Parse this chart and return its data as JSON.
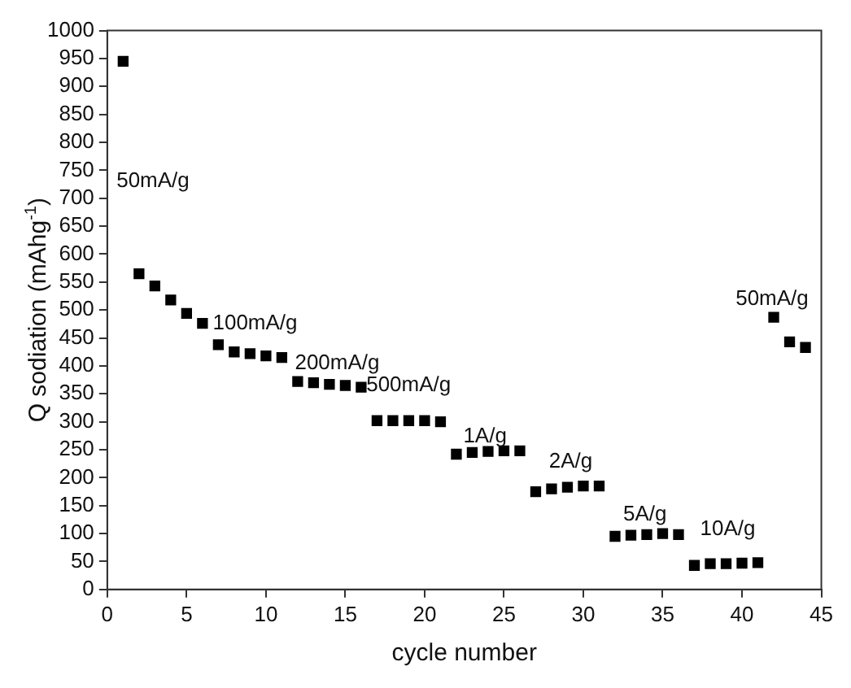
{
  "chart_data": {
    "type": "scatter",
    "xlabel": "cycle number",
    "ylabel": "Q sodiation (mAhg$^{-1}$)",
    "x": [
      1,
      2,
      3,
      4,
      5,
      6,
      7,
      8,
      9,
      10,
      11,
      12,
      13,
      14,
      15,
      16,
      17,
      18,
      19,
      20,
      21,
      22,
      23,
      24,
      25,
      26,
      27,
      28,
      29,
      30,
      31,
      32,
      33,
      34,
      35,
      36,
      37,
      38,
      39,
      40,
      41,
      42,
      43,
      44
    ],
    "series": [
      {
        "color": "#000000",
        "values": [
          945,
          565,
          543,
          518,
          494,
          476,
          438,
          425,
          422,
          418,
          415,
          372,
          370,
          367,
          365,
          362,
          302,
          302,
          302,
          302,
          300,
          242,
          245,
          247,
          248,
          248,
          175,
          180,
          183,
          185,
          185,
          95,
          97,
          98,
          100,
          98,
          43,
          46,
          46,
          47,
          48,
          487,
          443,
          433
        ]
      }
    ],
    "xlim": [
      0,
      45
    ],
    "xticks": [
      0,
      5,
      10,
      15,
      20,
      25,
      30,
      35,
      40,
      45
    ],
    "ylim": [
      0,
      1000
    ],
    "yticks": [
      0,
      50,
      100,
      150,
      200,
      250,
      300,
      350,
      400,
      450,
      500,
      550,
      600,
      650,
      700,
      750,
      800,
      850,
      900,
      950,
      1000
    ],
    "marker": "square",
    "grid": false,
    "legend": false,
    "annotations": [
      "50mA/g",
      "100mA/g",
      "200mA/g",
      "500mA/g",
      "1A/g",
      "2A/g",
      "5A/g",
      "10A/g",
      "50mA/g"
    ]
  }
}
